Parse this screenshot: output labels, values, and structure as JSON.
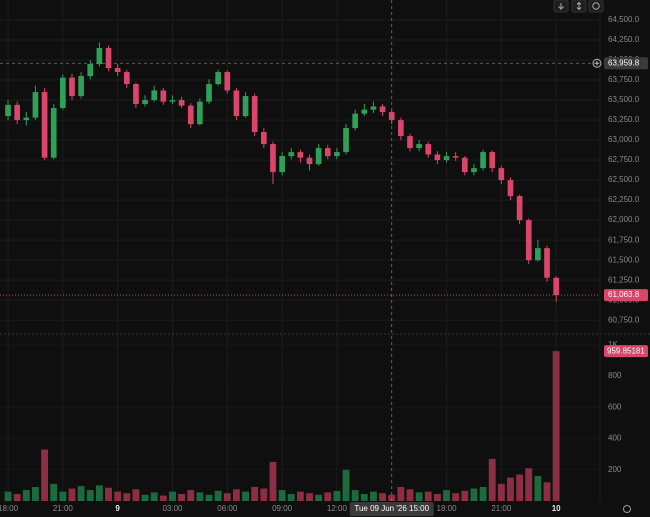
{
  "chart_data": [
    {
      "type": "candlestick",
      "up_color": "#2ea05a",
      "down_color": "#d9466a",
      "grid": true,
      "x": [
        0,
        0.5,
        1,
        1.5,
        2,
        2.5,
        3,
        3.5,
        4,
        4.5,
        5,
        5.5,
        6,
        6.5,
        7,
        7.5,
        8,
        8.5,
        9,
        9.5,
        10,
        10.5,
        11,
        11.5,
        12,
        12.5,
        13,
        13.5,
        14,
        14.5,
        15,
        15.5,
        16,
        16.5,
        17,
        17.5,
        18,
        18.5,
        19,
        19.5,
        20,
        20.5,
        21,
        21.5,
        22,
        22.5,
        23,
        23.5,
        24,
        24.5,
        25,
        25.5,
        26,
        26.5,
        27,
        27.5,
        28,
        28.5,
        29,
        29.5,
        30
      ],
      "open": [
        63300,
        63440,
        63250,
        63280,
        63600,
        62780,
        63400,
        63780,
        63550,
        63800,
        63950,
        64150,
        63900,
        63850,
        63700,
        63450,
        63500,
        63620,
        63480,
        63500,
        63430,
        63200,
        63480,
        63700,
        63850,
        63620,
        63300,
        63550,
        63100,
        62950,
        62600,
        62800,
        62850,
        62780,
        62700,
        62900,
        62800,
        62850,
        63150,
        63330,
        63380,
        63420,
        63350,
        63250,
        63050,
        62900,
        62950,
        62820,
        62750,
        62800,
        62780,
        62600,
        62650,
        62850,
        62650,
        62500,
        62300,
        62000,
        61500,
        61650,
        61280
      ],
      "high": [
        63500,
        63480,
        63350,
        63680,
        63650,
        63450,
        63820,
        63830,
        63850,
        64000,
        64220,
        64180,
        63950,
        63880,
        63720,
        63560,
        63680,
        63650,
        63560,
        63540,
        63460,
        63520,
        63760,
        63880,
        63870,
        63650,
        63600,
        63580,
        63150,
        62980,
        62850,
        62900,
        62880,
        62820,
        62950,
        62940,
        62900,
        63200,
        63380,
        63450,
        63480,
        63450,
        63380,
        63280,
        63080,
        63000,
        62980,
        62860,
        62850,
        62850,
        62800,
        62700,
        62880,
        62870,
        62680,
        62530,
        62320,
        62020,
        61750,
        61680,
        61300
      ],
      "low": [
        63250,
        63200,
        63180,
        63250,
        62750,
        62760,
        63380,
        63500,
        63520,
        63760,
        63920,
        63860,
        63800,
        63650,
        63400,
        63420,
        63480,
        63440,
        63450,
        63400,
        63150,
        63180,
        63450,
        63680,
        63580,
        63250,
        63280,
        63050,
        62900,
        62450,
        62560,
        62760,
        62720,
        62620,
        62680,
        62760,
        62760,
        62820,
        63120,
        63300,
        63340,
        63300,
        63200,
        63000,
        62860,
        62860,
        62780,
        62700,
        62720,
        62740,
        62560,
        62560,
        62620,
        62600,
        62450,
        62250,
        61950,
        61450,
        61480,
        61230,
        60980
      ],
      "close": [
        63440,
        63250,
        63280,
        63600,
        62780,
        63400,
        63780,
        63550,
        63800,
        63950,
        64150,
        63900,
        63850,
        63700,
        63450,
        63500,
        63620,
        63480,
        63500,
        63430,
        63200,
        63480,
        63700,
        63850,
        63620,
        63300,
        63550,
        63100,
        62950,
        62600,
        62800,
        62850,
        62780,
        62700,
        62900,
        62800,
        62850,
        63150,
        63330,
        63380,
        63420,
        63350,
        63250,
        63050,
        62900,
        62950,
        62820,
        62750,
        62800,
        62780,
        62600,
        62650,
        62850,
        62650,
        62500,
        62300,
        62000,
        61500,
        61650,
        61280,
        61063.8
      ],
      "xlim": [
        -0.44,
        32.4
      ],
      "xticks": [
        {
          "value": 0,
          "label": "18:00"
        },
        {
          "value": 3,
          "label": "21:00"
        },
        {
          "value": 6,
          "label": "9"
        },
        {
          "value": 9,
          "label": "03:00"
        },
        {
          "value": 12,
          "label": "06:00"
        },
        {
          "value": 15,
          "label": "09:00"
        },
        {
          "value": 18,
          "label": "12:00"
        },
        {
          "value": 24,
          "label": "18:00"
        },
        {
          "value": 27,
          "label": "21:00"
        },
        {
          "value": 30,
          "label": "10"
        }
      ],
      "ylim": [
        60590,
        64750
      ],
      "yticks": [
        {
          "value": 64500,
          "label": "64,500.0"
        },
        {
          "value": 64250,
          "label": "64,250.0"
        },
        {
          "value": 64000,
          "label": "64,000.0"
        },
        {
          "value": 63750,
          "label": "63,750.0"
        },
        {
          "value": 63500,
          "label": "63,500.0"
        },
        {
          "value": 63250,
          "label": "63,250.0"
        },
        {
          "value": 63000,
          "label": "63,000.0"
        },
        {
          "value": 62750,
          "label": "62,750.0"
        },
        {
          "value": 62500,
          "label": "62,500.0"
        },
        {
          "value": 62250,
          "label": "62,250.0"
        },
        {
          "value": 62000,
          "label": "62,000.0"
        },
        {
          "value": 61750,
          "label": "61,750.0"
        },
        {
          "value": 61500,
          "label": "61,500.0"
        },
        {
          "value": 61250,
          "label": "61,250.0"
        },
        {
          "value": 61000,
          "label": "61,000.0"
        },
        {
          "value": 60750,
          "label": "60,750.0"
        }
      ],
      "last_price": {
        "value": 61063.8,
        "label": "61,063.8"
      },
      "crosshair": {
        "x": {
          "value": 21,
          "label": "Tue 09 Jun '26 15:00"
        },
        "y": {
          "value": 63959.8,
          "label": "63,959.8"
        }
      }
    },
    {
      "type": "bar",
      "up_color": "#1d6b3c",
      "down_color": "#8c2f45",
      "values": [
        60,
        45,
        70,
        90,
        330,
        110,
        60,
        80,
        95,
        70,
        100,
        85,
        60,
        50,
        75,
        40,
        55,
        35,
        60,
        45,
        70,
        55,
        40,
        65,
        50,
        75,
        60,
        90,
        80,
        250,
        70,
        45,
        60,
        50,
        40,
        55,
        65,
        200,
        70,
        45,
        60,
        50,
        40,
        90,
        75,
        55,
        60,
        45,
        70,
        50,
        65,
        80,
        90,
        270,
        110,
        150,
        170,
        210,
        160,
        120,
        959.85181
      ],
      "ylim": [
        0,
        1025
      ],
      "yticks": [
        200,
        400,
        600,
        800,
        {
          "value": 1000,
          "label": "1K"
        }
      ]
    }
  ]
}
